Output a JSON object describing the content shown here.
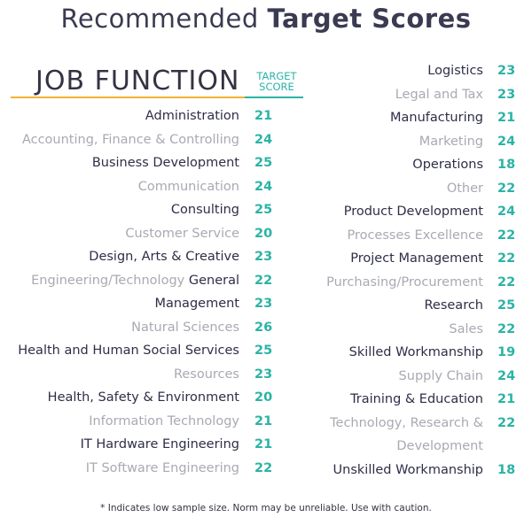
{
  "title": {
    "regular": "Recommended ",
    "bold": "Target Scores"
  },
  "header": {
    "job_function": "JOB FUNCTION",
    "target_line1": "TARGET",
    "target_line2": "SCORE"
  },
  "left": [
    {
      "name": "Administration",
      "score": "21",
      "tone": "dark"
    },
    {
      "name": "Accounting, Finance & Controlling",
      "score": "24",
      "tone": "light"
    },
    {
      "name": "Business Development",
      "score": "25",
      "tone": "dark"
    },
    {
      "name": "Communication",
      "score": "24",
      "tone": "light"
    },
    {
      "name": "Consulting",
      "score": "25",
      "tone": "dark"
    },
    {
      "name": "Customer Service",
      "score": "20",
      "tone": "light"
    },
    {
      "name": "Design, Arts & Creative",
      "score": "23",
      "tone": "dark"
    },
    {
      "name_light": "Engineering/Technology ",
      "name_dark": "General",
      "score": "22",
      "tone": "mixed"
    },
    {
      "name": "Management",
      "score": "23",
      "tone": "dark"
    },
    {
      "name": "Natural Sciences",
      "score": "26",
      "tone": "light"
    },
    {
      "name": "Health and Human Social Services",
      "score": "25",
      "tone": "dark"
    },
    {
      "name": "Resources",
      "score": "23",
      "tone": "light"
    },
    {
      "name": "Health, Safety & Environment",
      "score": "20",
      "tone": "dark"
    },
    {
      "name": "Information Technology",
      "score": "21",
      "tone": "light"
    },
    {
      "name": "IT Hardware Engineering",
      "score": "21",
      "tone": "dark"
    },
    {
      "name": "IT Software Engineering",
      "score": "22",
      "tone": "light"
    }
  ],
  "right": [
    {
      "name": "Logistics",
      "score": "23",
      "tone": "dark"
    },
    {
      "name": "Legal and Tax",
      "score": "23",
      "tone": "light"
    },
    {
      "name": "Manufacturing",
      "score": "21",
      "tone": "dark"
    },
    {
      "name": "Marketing",
      "score": "24",
      "tone": "light"
    },
    {
      "name": "Operations",
      "score": "18",
      "tone": "dark"
    },
    {
      "name": "Other",
      "score": "22",
      "tone": "light"
    },
    {
      "name": "Product Development",
      "score": "24",
      "tone": "dark"
    },
    {
      "name": "Processes Excellence",
      "score": "22",
      "tone": "light"
    },
    {
      "name": "Project Management",
      "score": "22",
      "tone": "dark"
    },
    {
      "name": "Purchasing/Procurement",
      "score": "22",
      "tone": "light"
    },
    {
      "name": "Research",
      "score": "25",
      "tone": "dark"
    },
    {
      "name": "Sales",
      "score": "22",
      "tone": "light"
    },
    {
      "name": "Skilled Workmanship",
      "score": "19",
      "tone": "dark"
    },
    {
      "name": "Supply Chain",
      "score": "24",
      "tone": "light"
    },
    {
      "name": "Training & Education",
      "score": "21",
      "tone": "dark"
    },
    {
      "name": "Technology, Research &",
      "score": "22",
      "tone": "light"
    },
    {
      "name": "Development",
      "score": "",
      "tone": "light"
    },
    {
      "name": "Unskilled Workmanship",
      "score": "18",
      "tone": "dark"
    }
  ],
  "footnote": "* Indicates low sample size. Norm may be unreliable. Use with caution."
}
